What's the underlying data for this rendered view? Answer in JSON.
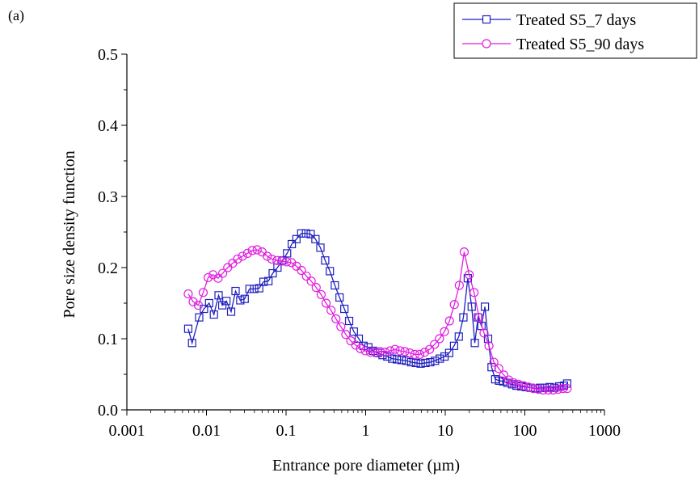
{
  "panel_label": "(a)",
  "chart_data": {
    "type": "line",
    "xlabel": "Entrance pore diameter (µm)",
    "ylabel": "Pore size density function",
    "xscale": "log",
    "xlim": [
      0.001,
      1000
    ],
    "ylim": [
      0.0,
      0.5
    ],
    "x_ticks": [
      0.001,
      0.01,
      0.1,
      1,
      10,
      100,
      1000
    ],
    "x_tick_labels": [
      "0.001",
      "0.01",
      "0.1",
      "1",
      "10",
      "100",
      "1000"
    ],
    "y_ticks": [
      0.0,
      0.1,
      0.2,
      0.3,
      0.4,
      0.5
    ],
    "y_tick_labels": [
      "0.0",
      "0.1",
      "0.2",
      "0.3",
      "0.4",
      "0.5"
    ],
    "grid": false,
    "legend_position": "top-right",
    "series": [
      {
        "name": "Treated S5_7 days",
        "color": "#1f1fbf",
        "marker": "square",
        "x": [
          0.0059,
          0.0066,
          0.0081,
          0.0093,
          0.0108,
          0.0124,
          0.0142,
          0.0158,
          0.0178,
          0.0204,
          0.0232,
          0.0266,
          0.0302,
          0.0347,
          0.0398,
          0.046,
          0.052,
          0.06,
          0.068,
          0.078,
          0.09,
          0.103,
          0.118,
          0.135,
          0.155,
          0.178,
          0.204,
          0.234,
          0.27,
          0.31,
          0.355,
          0.41,
          0.47,
          0.54,
          0.62,
          0.71,
          0.82,
          0.94,
          1.08,
          1.24,
          1.42,
          1.63,
          1.87,
          2.15,
          2.47,
          2.83,
          3.25,
          3.73,
          4.28,
          4.91,
          5.64,
          6.47,
          7.43,
          8.53,
          9.79,
          11.2,
          12.9,
          14.8,
          16.9,
          19.2,
          21.5,
          23.5,
          25.8,
          28.5,
          31.5,
          34.5,
          38.2,
          42.5,
          47.5,
          53.5,
          60.5,
          69,
          78.5,
          90,
          103,
          118,
          135,
          155,
          178,
          205,
          235,
          270,
          310,
          340
        ],
        "y": [
          0.114,
          0.094,
          0.13,
          0.142,
          0.15,
          0.134,
          0.161,
          0.147,
          0.153,
          0.138,
          0.167,
          0.154,
          0.156,
          0.17,
          0.17,
          0.171,
          0.18,
          0.181,
          0.192,
          0.2,
          0.21,
          0.22,
          0.233,
          0.24,
          0.248,
          0.248,
          0.247,
          0.24,
          0.228,
          0.21,
          0.195,
          0.175,
          0.158,
          0.142,
          0.125,
          0.11,
          0.1,
          0.09,
          0.088,
          0.083,
          0.08,
          0.077,
          0.075,
          0.072,
          0.071,
          0.07,
          0.069,
          0.067,
          0.066,
          0.065,
          0.066,
          0.067,
          0.069,
          0.072,
          0.075,
          0.08,
          0.09,
          0.103,
          0.13,
          0.185,
          0.145,
          0.094,
          0.13,
          0.118,
          0.145,
          0.1,
          0.06,
          0.043,
          0.041,
          0.04,
          0.038,
          0.036,
          0.034,
          0.033,
          0.032,
          0.031,
          0.03,
          0.031,
          0.031,
          0.032,
          0.031,
          0.033,
          0.034,
          0.037
        ]
      },
      {
        "name": "Treated S5_90 days",
        "color": "#e01ee0",
        "marker": "circle",
        "x": [
          0.0059,
          0.0068,
          0.0079,
          0.0091,
          0.0105,
          0.0121,
          0.014,
          0.016,
          0.0185,
          0.0213,
          0.0246,
          0.0283,
          0.0327,
          0.0376,
          0.0433,
          0.05,
          0.058,
          0.066,
          0.077,
          0.088,
          0.102,
          0.117,
          0.135,
          0.156,
          0.18,
          0.207,
          0.239,
          0.276,
          0.318,
          0.367,
          0.423,
          0.488,
          0.563,
          0.65,
          0.75,
          0.86,
          0.99,
          1.15,
          1.32,
          1.52,
          1.76,
          2.03,
          2.34,
          2.7,
          3.11,
          3.59,
          4.14,
          4.78,
          5.51,
          6.36,
          7.34,
          8.46,
          9.76,
          11.3,
          13.0,
          15.0,
          17.3,
          20.0,
          23.0,
          26.6,
          30.7,
          35.4,
          40.8,
          47.1,
          54.3,
          62.7,
          72.3,
          83.4,
          96.3,
          111,
          128,
          148,
          170,
          197,
          227,
          262,
          302,
          340
        ],
        "y": [
          0.163,
          0.152,
          0.147,
          0.165,
          0.186,
          0.19,
          0.185,
          0.192,
          0.2,
          0.206,
          0.212,
          0.216,
          0.22,
          0.224,
          0.225,
          0.222,
          0.216,
          0.212,
          0.21,
          0.209,
          0.208,
          0.207,
          0.202,
          0.196,
          0.188,
          0.181,
          0.172,
          0.162,
          0.15,
          0.14,
          0.128,
          0.117,
          0.106,
          0.097,
          0.091,
          0.086,
          0.083,
          0.081,
          0.081,
          0.082,
          0.081,
          0.083,
          0.085,
          0.083,
          0.082,
          0.08,
          0.078,
          0.078,
          0.081,
          0.085,
          0.092,
          0.1,
          0.11,
          0.125,
          0.148,
          0.175,
          0.222,
          0.19,
          0.165,
          0.13,
          0.108,
          0.09,
          0.067,
          0.058,
          0.049,
          0.042,
          0.038,
          0.036,
          0.034,
          0.032,
          0.03,
          0.029,
          0.028,
          0.028,
          0.028,
          0.029,
          0.03,
          0.03
        ]
      }
    ]
  }
}
